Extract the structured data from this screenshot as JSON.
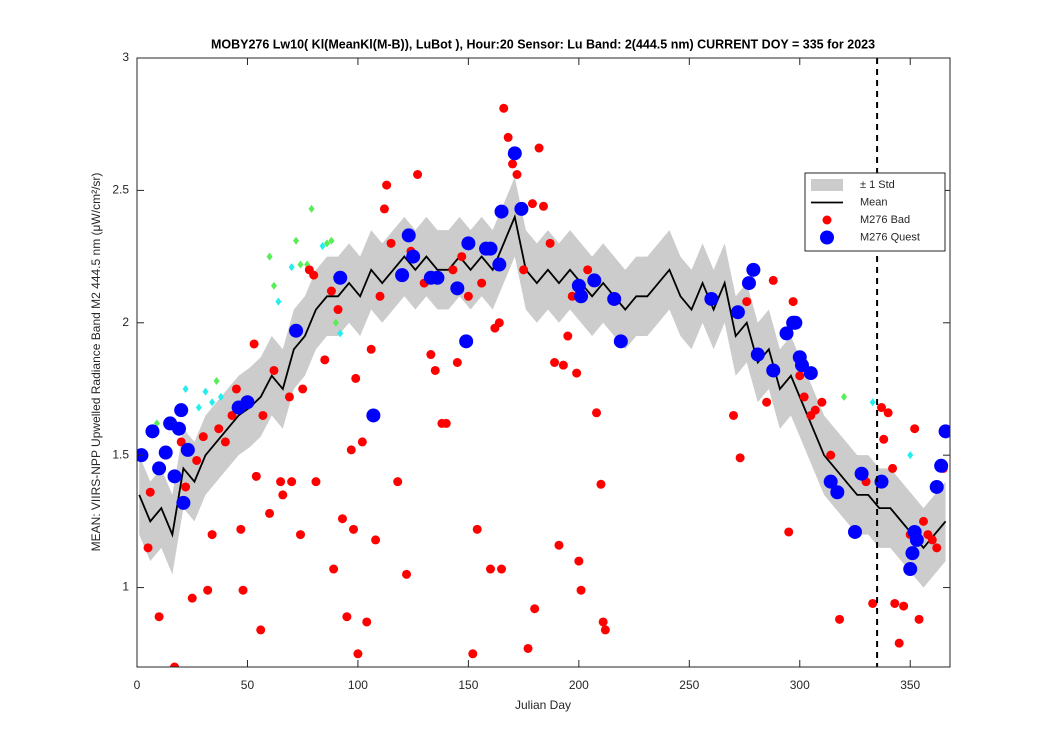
{
  "chart_data": {
    "type": "scatter",
    "title": "MOBY276   Lw10( Kl(MeanKl(M-B)), LuBot ),    Hour:20 Sensor: Lu Band: 2(444.5 nm)    CURRENT DOY = 335 for 2023",
    "x_label": "Julian Day",
    "y_label": "MEAN: VIIRS-NPP Upwelled Radiance Band M2 444.5 nm (μW/cm²/sr)",
    "xlim": [
      0,
      368
    ],
    "xticks": [
      0,
      50,
      100,
      150,
      200,
      250,
      300,
      350
    ],
    "ylim": [
      0.7,
      3
    ],
    "yticks": [
      1,
      1.5,
      2,
      2.5,
      3
    ],
    "current_doy": 335,
    "legend": "northeast",
    "series": [
      {
        "name": "± 1 Std",
        "style": "band",
        "color": "#cccccc",
        "x": [
          1,
          6,
          11,
          16,
          21,
          26,
          31,
          36,
          41,
          46,
          51,
          56,
          61,
          66,
          71,
          76,
          81,
          86,
          91,
          96,
          101,
          106,
          111,
          116,
          121,
          126,
          131,
          136,
          141,
          146,
          151,
          156,
          161,
          166,
          171,
          176,
          181,
          186,
          191,
          196,
          201,
          206,
          211,
          216,
          221,
          226,
          231,
          236,
          241,
          246,
          251,
          256,
          261,
          266,
          271,
          276,
          281,
          286,
          291,
          296,
          301,
          306,
          311,
          316,
          321,
          326,
          331,
          336,
          341,
          346,
          351,
          356,
          361,
          366
        ],
        "upper": [
          1.5,
          1.4,
          1.45,
          1.35,
          1.6,
          1.55,
          1.65,
          1.7,
          1.75,
          1.8,
          1.83,
          1.87,
          1.95,
          1.9,
          2.05,
          2.1,
          2.2,
          2.25,
          2.25,
          2.3,
          2.25,
          2.35,
          2.3,
          2.35,
          2.4,
          2.35,
          2.4,
          2.35,
          2.35,
          2.4,
          2.35,
          2.4,
          2.35,
          2.45,
          2.55,
          2.35,
          2.3,
          2.35,
          2.3,
          2.35,
          2.3,
          2.25,
          2.3,
          2.25,
          2.2,
          2.25,
          2.25,
          2.3,
          2.35,
          2.25,
          2.2,
          2.3,
          2.2,
          2.3,
          2.1,
          2.15,
          2.0,
          2.05,
          1.9,
          1.95,
          1.85,
          1.75,
          1.65,
          1.6,
          1.55,
          1.5,
          1.5,
          1.45,
          1.45,
          1.4,
          1.35,
          1.3,
          1.35,
          1.4
        ],
        "lower": [
          1.2,
          1.1,
          1.15,
          1.05,
          1.3,
          1.25,
          1.35,
          1.4,
          1.45,
          1.5,
          1.53,
          1.57,
          1.65,
          1.6,
          1.75,
          1.8,
          1.9,
          1.95,
          1.95,
          2.0,
          1.95,
          2.05,
          2.0,
          2.05,
          2.1,
          2.05,
          2.1,
          2.05,
          2.05,
          2.1,
          2.05,
          2.1,
          2.05,
          2.15,
          2.25,
          2.05,
          2.0,
          2.05,
          2.0,
          2.05,
          2.0,
          1.95,
          2.0,
          1.95,
          1.9,
          1.95,
          1.95,
          2.0,
          2.05,
          1.95,
          1.9,
          2.0,
          1.9,
          2.0,
          1.8,
          1.85,
          1.7,
          1.75,
          1.6,
          1.65,
          1.55,
          1.45,
          1.35,
          1.3,
          1.25,
          1.2,
          1.2,
          1.15,
          1.15,
          1.1,
          1.05,
          1.0,
          1.05,
          1.1
        ]
      },
      {
        "name": "Mean",
        "style": "line",
        "color": "#000000",
        "x": [
          1,
          6,
          11,
          16,
          21,
          26,
          31,
          36,
          41,
          46,
          51,
          56,
          61,
          66,
          71,
          76,
          81,
          86,
          91,
          96,
          101,
          106,
          111,
          116,
          121,
          126,
          131,
          136,
          141,
          146,
          151,
          156,
          161,
          166,
          171,
          176,
          181,
          186,
          191,
          196,
          201,
          206,
          211,
          216,
          221,
          226,
          231,
          236,
          241,
          246,
          251,
          256,
          261,
          266,
          271,
          276,
          281,
          286,
          291,
          296,
          301,
          306,
          311,
          316,
          321,
          326,
          331,
          336,
          341,
          346,
          351,
          356,
          361,
          366
        ],
        "values": [
          1.35,
          1.25,
          1.3,
          1.2,
          1.45,
          1.4,
          1.5,
          1.55,
          1.6,
          1.65,
          1.68,
          1.72,
          1.8,
          1.75,
          1.9,
          1.95,
          2.05,
          2.1,
          2.1,
          2.15,
          2.1,
          2.2,
          2.15,
          2.2,
          2.25,
          2.2,
          2.25,
          2.2,
          2.2,
          2.25,
          2.2,
          2.25,
          2.2,
          2.3,
          2.4,
          2.2,
          2.15,
          2.2,
          2.15,
          2.2,
          2.15,
          2.1,
          2.15,
          2.1,
          2.05,
          2.1,
          2.1,
          2.15,
          2.2,
          2.1,
          2.05,
          2.15,
          2.05,
          2.15,
          1.95,
          2.0,
          1.85,
          1.9,
          1.75,
          1.8,
          1.7,
          1.6,
          1.5,
          1.45,
          1.4,
          1.35,
          1.35,
          1.3,
          1.3,
          1.25,
          1.2,
          1.15,
          1.2,
          1.25
        ]
      },
      {
        "style": "diamond",
        "color": "#55ee55",
        "x": [
          9,
          36,
          60,
          62,
          72,
          74,
          77,
          79,
          86,
          88,
          90,
          320
        ],
        "values": [
          1.62,
          1.78,
          2.25,
          2.14,
          2.31,
          2.22,
          2.22,
          2.43,
          2.3,
          2.31,
          2.0,
          1.72
        ]
      },
      {
        "style": "diamond",
        "color": "#22eeee",
        "x": [
          22,
          28,
          31,
          34,
          38,
          64,
          70,
          84,
          92,
          333,
          350
        ],
        "values": [
          1.75,
          1.68,
          1.74,
          1.7,
          1.72,
          2.08,
          2.21,
          2.29,
          1.96,
          1.7,
          1.5
        ]
      },
      {
        "name": "M276 Bad",
        "style": "dot",
        "color": "#ff0000",
        "x": [
          5,
          6,
          10,
          13,
          17,
          20,
          22,
          25,
          27,
          30,
          32,
          34,
          37,
          40,
          43,
          45,
          47,
          48,
          50,
          53,
          54,
          56,
          57,
          60,
          62,
          65,
          66,
          69,
          70,
          74,
          75,
          78,
          80,
          81,
          85,
          88,
          89,
          91,
          93,
          95,
          97,
          98,
          99,
          100,
          102,
          104,
          106,
          108,
          110,
          112,
          113,
          115,
          118,
          120,
          122,
          124,
          127,
          130,
          133,
          135,
          138,
          140,
          143,
          145,
          147,
          150,
          152,
          154,
          156,
          160,
          162,
          164,
          165,
          166,
          168,
          170,
          172,
          175,
          177,
          179,
          180,
          182,
          184,
          187,
          189,
          191,
          193,
          195,
          197,
          199,
          200,
          201,
          204,
          208,
          210,
          211,
          212,
          270,
          273,
          276,
          282,
          285,
          288,
          295,
          297,
          300,
          302,
          305,
          307,
          310,
          314,
          318,
          330,
          333,
          337,
          338,
          340,
          342,
          343,
          345,
          347,
          350,
          352,
          354,
          356,
          358,
          360,
          362,
          365
        ],
        "values": [
          1.15,
          1.36,
          0.89,
          1.5,
          0.7,
          1.55,
          1.38,
          0.96,
          1.48,
          1.57,
          0.99,
          1.2,
          1.6,
          1.55,
          1.65,
          1.75,
          1.22,
          0.99,
          1.7,
          1.92,
          1.42,
          0.84,
          1.65,
          1.28,
          1.82,
          1.4,
          1.35,
          1.72,
          1.4,
          1.2,
          1.75,
          2.2,
          2.18,
          1.4,
          1.86,
          2.12,
          1.07,
          2.05,
          1.26,
          0.89,
          1.52,
          1.22,
          1.79,
          0.75,
          1.55,
          0.87,
          1.9,
          1.18,
          2.1,
          2.43,
          2.52,
          2.3,
          1.4,
          2.18,
          1.05,
          2.27,
          2.56,
          2.15,
          1.88,
          1.82,
          1.62,
          1.62,
          2.2,
          1.85,
          2.25,
          2.1,
          0.75,
          1.22,
          2.15,
          1.07,
          1.98,
          2.0,
          1.07,
          2.81,
          2.7,
          2.6,
          2.56,
          2.2,
          0.77,
          2.45,
          0.92,
          2.66,
          2.44,
          2.3,
          1.85,
          1.16,
          1.84,
          1.95,
          2.1,
          1.81,
          1.1,
          0.99,
          2.2,
          1.66,
          1.39,
          0.87,
          0.84,
          1.65,
          1.49,
          2.08,
          1.88,
          1.7,
          2.16,
          1.21,
          2.08,
          1.8,
          1.72,
          1.65,
          1.67,
          1.7,
          1.5,
          0.88,
          1.4,
          0.94,
          1.68,
          1.56,
          1.66,
          1.45,
          0.94,
          0.79,
          0.93,
          1.2,
          1.6,
          0.88,
          1.25,
          1.2,
          1.18,
          1.15,
          1.45
        ]
      },
      {
        "name": "M276 Quest",
        "style": "bigdot",
        "color": "#0000ff",
        "x": [
          2,
          7,
          10,
          13,
          15,
          17,
          19,
          20,
          21,
          23,
          46,
          50,
          72,
          92,
          107,
          120,
          123,
          125,
          133,
          136,
          145,
          149,
          150,
          158,
          160,
          164,
          165,
          171,
          174,
          200,
          201,
          207,
          216,
          219,
          260,
          272,
          277,
          279,
          281,
          288,
          294,
          297,
          298,
          300,
          301,
          305,
          314,
          317,
          325,
          328,
          337,
          350,
          351,
          352,
          353,
          362,
          364,
          366
        ],
        "values": [
          1.5,
          1.59,
          1.45,
          1.51,
          1.62,
          1.42,
          1.6,
          1.67,
          1.32,
          1.52,
          1.68,
          1.7,
          1.97,
          2.17,
          1.65,
          2.18,
          2.33,
          2.25,
          2.17,
          2.17,
          2.13,
          1.93,
          2.3,
          2.28,
          2.28,
          2.22,
          2.42,
          2.64,
          2.43,
          2.14,
          2.1,
          2.16,
          2.09,
          1.93,
          2.09,
          2.04,
          2.15,
          2.2,
          1.88,
          1.82,
          1.96,
          2.0,
          2.0,
          1.87,
          1.84,
          1.81,
          1.4,
          1.36,
          1.21,
          1.43,
          1.4,
          1.07,
          1.13,
          1.21,
          1.18,
          1.38,
          1.46,
          1.59
        ]
      }
    ]
  }
}
